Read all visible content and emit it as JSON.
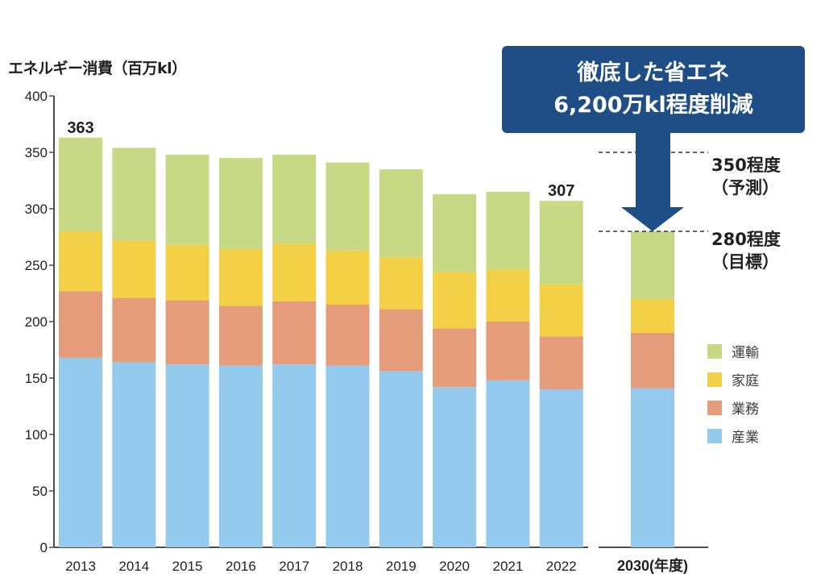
{
  "chart_data": {
    "type": "bar",
    "stacked": true,
    "title": "",
    "ylabel": "エネルギー消費（百万kl）",
    "xlabel": "",
    "ylim": [
      0,
      400
    ],
    "yticks": [
      0,
      50,
      100,
      150,
      200,
      250,
      300,
      350,
      400
    ],
    "grid": false,
    "legend_position": "right",
    "categories": [
      "2013",
      "2014",
      "2015",
      "2016",
      "2017",
      "2018",
      "2019",
      "2020",
      "2021",
      "2022",
      "2030(年度)"
    ],
    "series": [
      {
        "name": "産業",
        "color": "#93caee",
        "values": [
          168,
          164,
          162,
          161,
          162,
          161,
          156,
          142,
          148,
          140,
          141
        ]
      },
      {
        "name": "業務",
        "color": "#e59c7b",
        "values": [
          59,
          57,
          57,
          53,
          56,
          54,
          55,
          52,
          52,
          47,
          49
        ]
      },
      {
        "name": "家庭",
        "color": "#f4d046",
        "values": [
          53,
          51,
          49,
          50,
          51,
          48,
          46,
          50,
          46,
          46,
          30
        ]
      },
      {
        "name": "運輸",
        "color": "#c8d985",
        "values": [
          83,
          82,
          80,
          81,
          79,
          78,
          78,
          69,
          69,
          74,
          60
        ]
      }
    ],
    "data_labels": [
      {
        "category": "2013",
        "text": "363"
      },
      {
        "category": "2022",
        "text": "307"
      }
    ],
    "reference_lines": [
      {
        "value": 350,
        "label_line1": "350程度",
        "label_line2": "（予測）"
      },
      {
        "value": 280,
        "label_line1": "280程度",
        "label_line2": "（目標）"
      }
    ],
    "annotation": {
      "line1": "徹底した省エネ",
      "line2": "6,200万kl程度削減",
      "color": "#1f4e86"
    }
  },
  "legend": [
    {
      "label": "運輸",
      "color": "#c8d985"
    },
    {
      "label": "家庭",
      "color": "#f4d046"
    },
    {
      "label": "業務",
      "color": "#e59c7b"
    },
    {
      "label": "産業",
      "color": "#93caee"
    }
  ]
}
